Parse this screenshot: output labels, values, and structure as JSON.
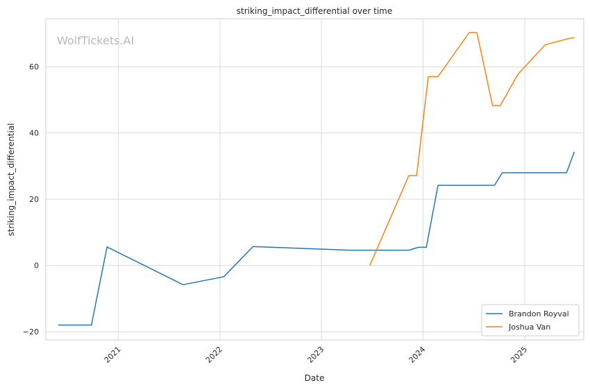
{
  "chart_data": {
    "type": "line",
    "title": "striking_impact_differential over time",
    "xlabel": "Date",
    "ylabel": "striking_impact_differential",
    "watermark": "WolfTickets.AI",
    "xlim": [
      "2020-04-15",
      "2025-08-01"
    ],
    "ylim": [
      -22.5,
      74.5
    ],
    "x_ticks": [
      "2021",
      "2022",
      "2023",
      "2024",
      "2025"
    ],
    "y_ticks": [
      -20,
      0,
      20,
      40,
      60
    ],
    "y_tick_labels": [
      "−20",
      "0",
      "20",
      "40",
      "60"
    ],
    "grid": true,
    "legend_position": "lower-right",
    "series": [
      {
        "name": "Brandon Royval",
        "color": "#1f77b4",
        "points": [
          [
            "2020-05-30",
            -18.0
          ],
          [
            "2020-09-26",
            -18.0
          ],
          [
            "2020-11-21",
            5.6
          ],
          [
            "2021-08-21",
            -5.8
          ],
          [
            "2022-01-15",
            -3.4
          ],
          [
            "2022-04-30",
            5.7
          ],
          [
            "2023-04-15",
            4.6
          ],
          [
            "2023-11-11",
            4.6
          ],
          [
            "2023-12-16",
            5.5
          ],
          [
            "2024-01-13",
            5.5
          ],
          [
            "2024-02-24",
            24.2
          ],
          [
            "2024-09-14",
            24.2
          ],
          [
            "2024-10-12",
            28.0
          ],
          [
            "2025-05-31",
            28.0
          ],
          [
            "2025-06-28",
            34.3
          ]
        ]
      },
      {
        "name": "Joshua Van",
        "color": "#ff7f0e",
        "points": [
          [
            "2023-06-24",
            0.0
          ],
          [
            "2023-11-11",
            27.1
          ],
          [
            "2023-12-09",
            27.1
          ],
          [
            "2024-01-20",
            57.0
          ],
          [
            "2024-02-24",
            57.0
          ],
          [
            "2024-06-15",
            70.3
          ],
          [
            "2024-07-13",
            70.3
          ],
          [
            "2024-09-07",
            48.3
          ],
          [
            "2024-10-05",
            48.3
          ],
          [
            "2024-12-07",
            57.7
          ],
          [
            "2025-03-15",
            66.6
          ],
          [
            "2025-06-07",
            68.5
          ],
          [
            "2025-06-28",
            68.8
          ]
        ]
      }
    ]
  }
}
